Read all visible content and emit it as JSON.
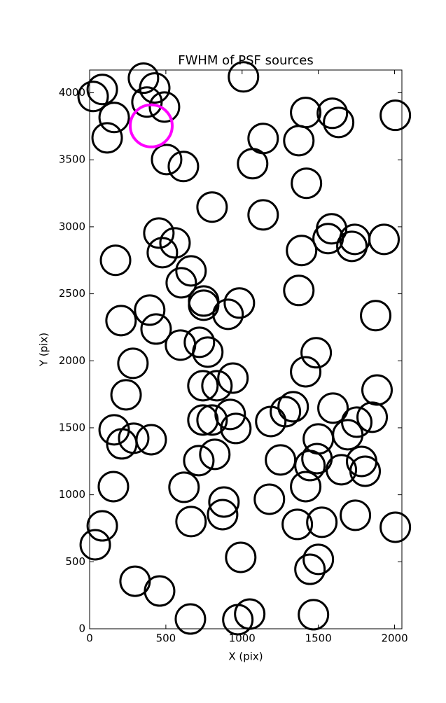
{
  "chart_data": {
    "type": "scatter",
    "title": "FWHM of PSF sources",
    "x_label": "X (pix)",
    "y_label": "Y (pix)",
    "xlim": [
      0,
      2048
    ],
    "ylim": [
      0,
      4170
    ],
    "xticks": [
      0,
      500,
      1000,
      1500,
      2000
    ],
    "yticks": [
      0,
      500,
      1000,
      1500,
      2000,
      2500,
      3000,
      3500,
      4000
    ],
    "marker": "open-circle",
    "series": [
      {
        "color": "#000000",
        "marker_size": 21,
        "x": [
          23,
          83,
          161,
          115,
          353,
          427,
          376,
          491,
          505,
          615,
          1009,
          1417,
          1592,
          1633,
          2005,
          1138,
          1372,
          1069,
          1422,
          803,
          1138,
          454,
          560,
          477,
          170,
          665,
          601,
          1390,
          1587,
          1564,
          1739,
          1720,
          1931,
          1372,
          748,
          748,
          982,
          908,
          394,
          206,
          436,
          1876,
          596,
          720,
          775,
          1486,
          1417,
          284,
          239,
          940,
          743,
          835,
          1885,
          1596,
          1335,
          1284,
          1752,
          1853,
          1693,
          922,
          959,
          743,
          803,
          1188,
          161,
          211,
          289,
          404,
          1500,
          1491,
          1445,
          821,
          716,
          1252,
          1651,
          1784,
          1807,
          156,
          619,
          1417,
          1179,
          881,
          872,
          665,
          83,
          37,
          1362,
          1523,
          1743,
          2005,
          991,
          1500,
          1445,
          298,
          459,
          661,
          972,
          1050,
          1468
        ],
        "values": [
          3973,
          4025,
          3816,
          3664,
          4109,
          4036,
          3931,
          3894,
          3502,
          3450,
          4119,
          3853,
          3847,
          3779,
          3832,
          3659,
          3643,
          3471,
          3325,
          3147,
          3089,
          2953,
          2880,
          2807,
          2750,
          2671,
          2582,
          2823,
          2985,
          2912,
          2906,
          2854,
          2906,
          2525,
          2446,
          2415,
          2431,
          2347,
          2378,
          2300,
          2237,
          2337,
          2117,
          2138,
          2065,
          2060,
          1918,
          1981,
          1746,
          1871,
          1814,
          1814,
          1782,
          1647,
          1657,
          1620,
          1542,
          1579,
          1448,
          1600,
          1495,
          1558,
          1558,
          1547,
          1485,
          1380,
          1422,
          1411,
          1417,
          1270,
          1218,
          1302,
          1255,
          1260,
          1187,
          1249,
          1176,
          1061,
          1056,
          1061,
          967,
          946,
          852,
          800,
          768,
          627,
          779,
          795,
          847,
          758,
          533,
          518,
          444,
          355,
          282,
          73,
          68,
          110,
          105
        ]
      },
      {
        "color": "#ff00ff",
        "marker_size": 30,
        "x": [
          404
        ],
        "values": [
          3753
        ]
      }
    ]
  }
}
